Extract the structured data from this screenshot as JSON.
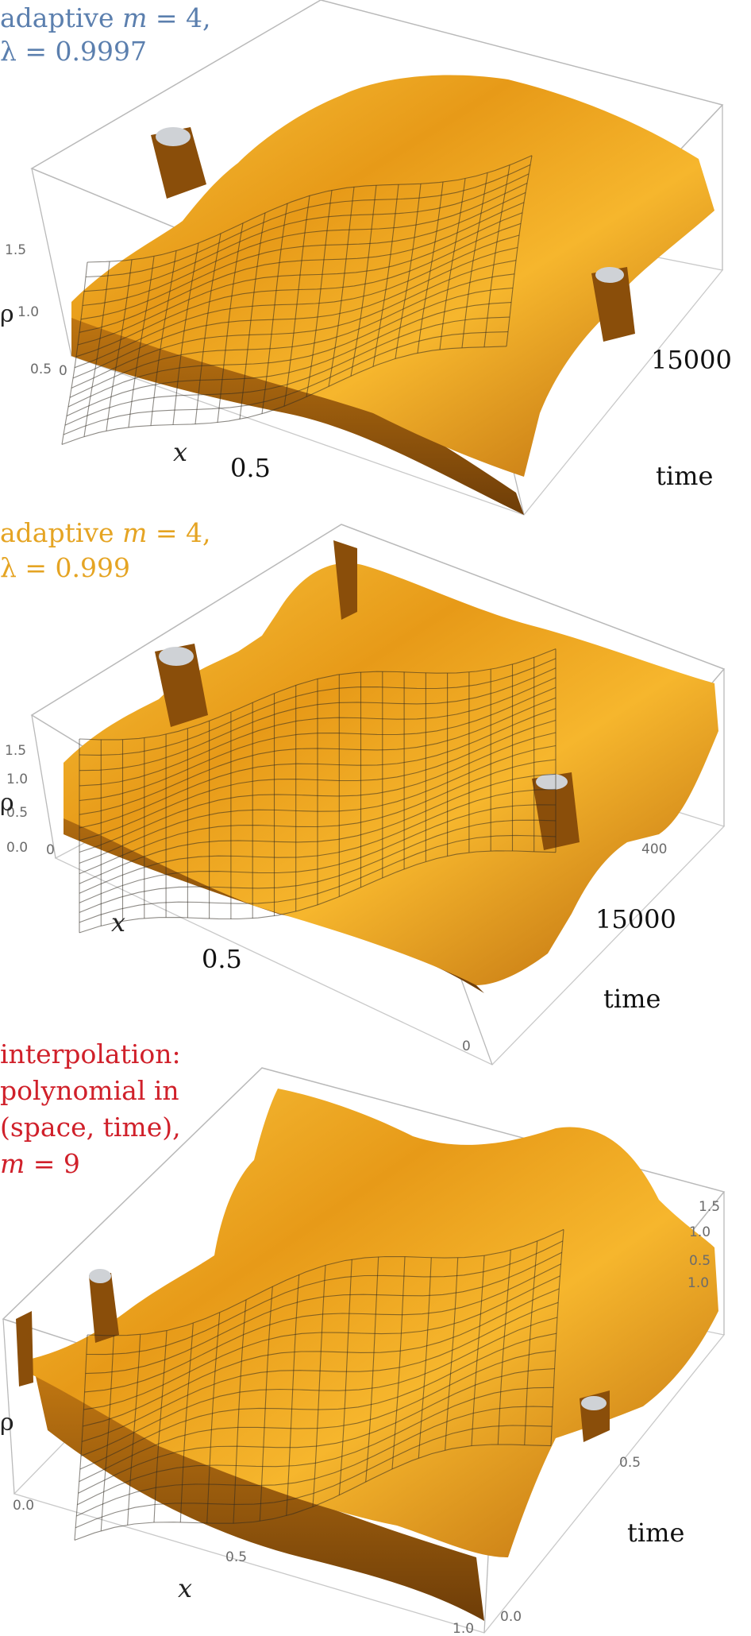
{
  "colors": {
    "surface": "#e8a01c",
    "surface_light": "#f7c239",
    "surface_dark": "#8a4e0a",
    "mesh": "#2f2a20",
    "box": "#b9b9b9",
    "panel1_title": "#5b7fae",
    "panel2_title": "#e5a423",
    "panel3_title": "#d0202a",
    "cap": "#cfd2d6"
  },
  "chart_data": [
    {
      "type": "surface3d",
      "title_lines": [
        [
          "adaptive ",
          "m",
          " = 4,"
        ],
        [
          "λ = 0.9997"
        ]
      ],
      "x": {
        "label": "x",
        "ticks": [
          "0",
          "0.5"
        ]
      },
      "time": {
        "label": "time",
        "ticks": [
          "15000"
        ]
      },
      "rho": {
        "label": "ρ",
        "ticks": [
          "0.5",
          "1.0",
          "1.5"
        ],
        "range": [
          0.5,
          1.7
        ]
      },
      "mesh": "on"
    },
    {
      "type": "surface3d",
      "title_lines": [
        [
          "adaptive ",
          "m",
          " = 4,"
        ],
        [
          "λ = 0.999"
        ]
      ],
      "x": {
        "label": "x",
        "ticks": [
          "0",
          "0.5"
        ]
      },
      "time": {
        "label": "time",
        "ticks": [
          "0",
          "400",
          "15000"
        ]
      },
      "rho": {
        "label": "ρ",
        "ticks": [
          "0.0",
          "0.5",
          "1.0",
          "1.5"
        ],
        "range": [
          0.0,
          1.8
        ]
      },
      "mesh": "on"
    },
    {
      "type": "surface3d",
      "title_lines": [
        [
          "interpolation:"
        ],
        [
          "polynomial in"
        ],
        [
          "(space, time),"
        ],
        [
          "",
          "m",
          " = 9"
        ]
      ],
      "x": {
        "label": "x",
        "ticks": [
          "0.0",
          "0.5",
          "1.0"
        ]
      },
      "time": {
        "label": "time",
        "ticks": [
          "0.0",
          "0.5",
          "1.0"
        ]
      },
      "rho": {
        "label": "ρ",
        "ticks": [
          "0.5",
          "1.0",
          "1.5"
        ],
        "range": [
          0.5,
          1.7
        ]
      },
      "mesh": "on"
    }
  ]
}
